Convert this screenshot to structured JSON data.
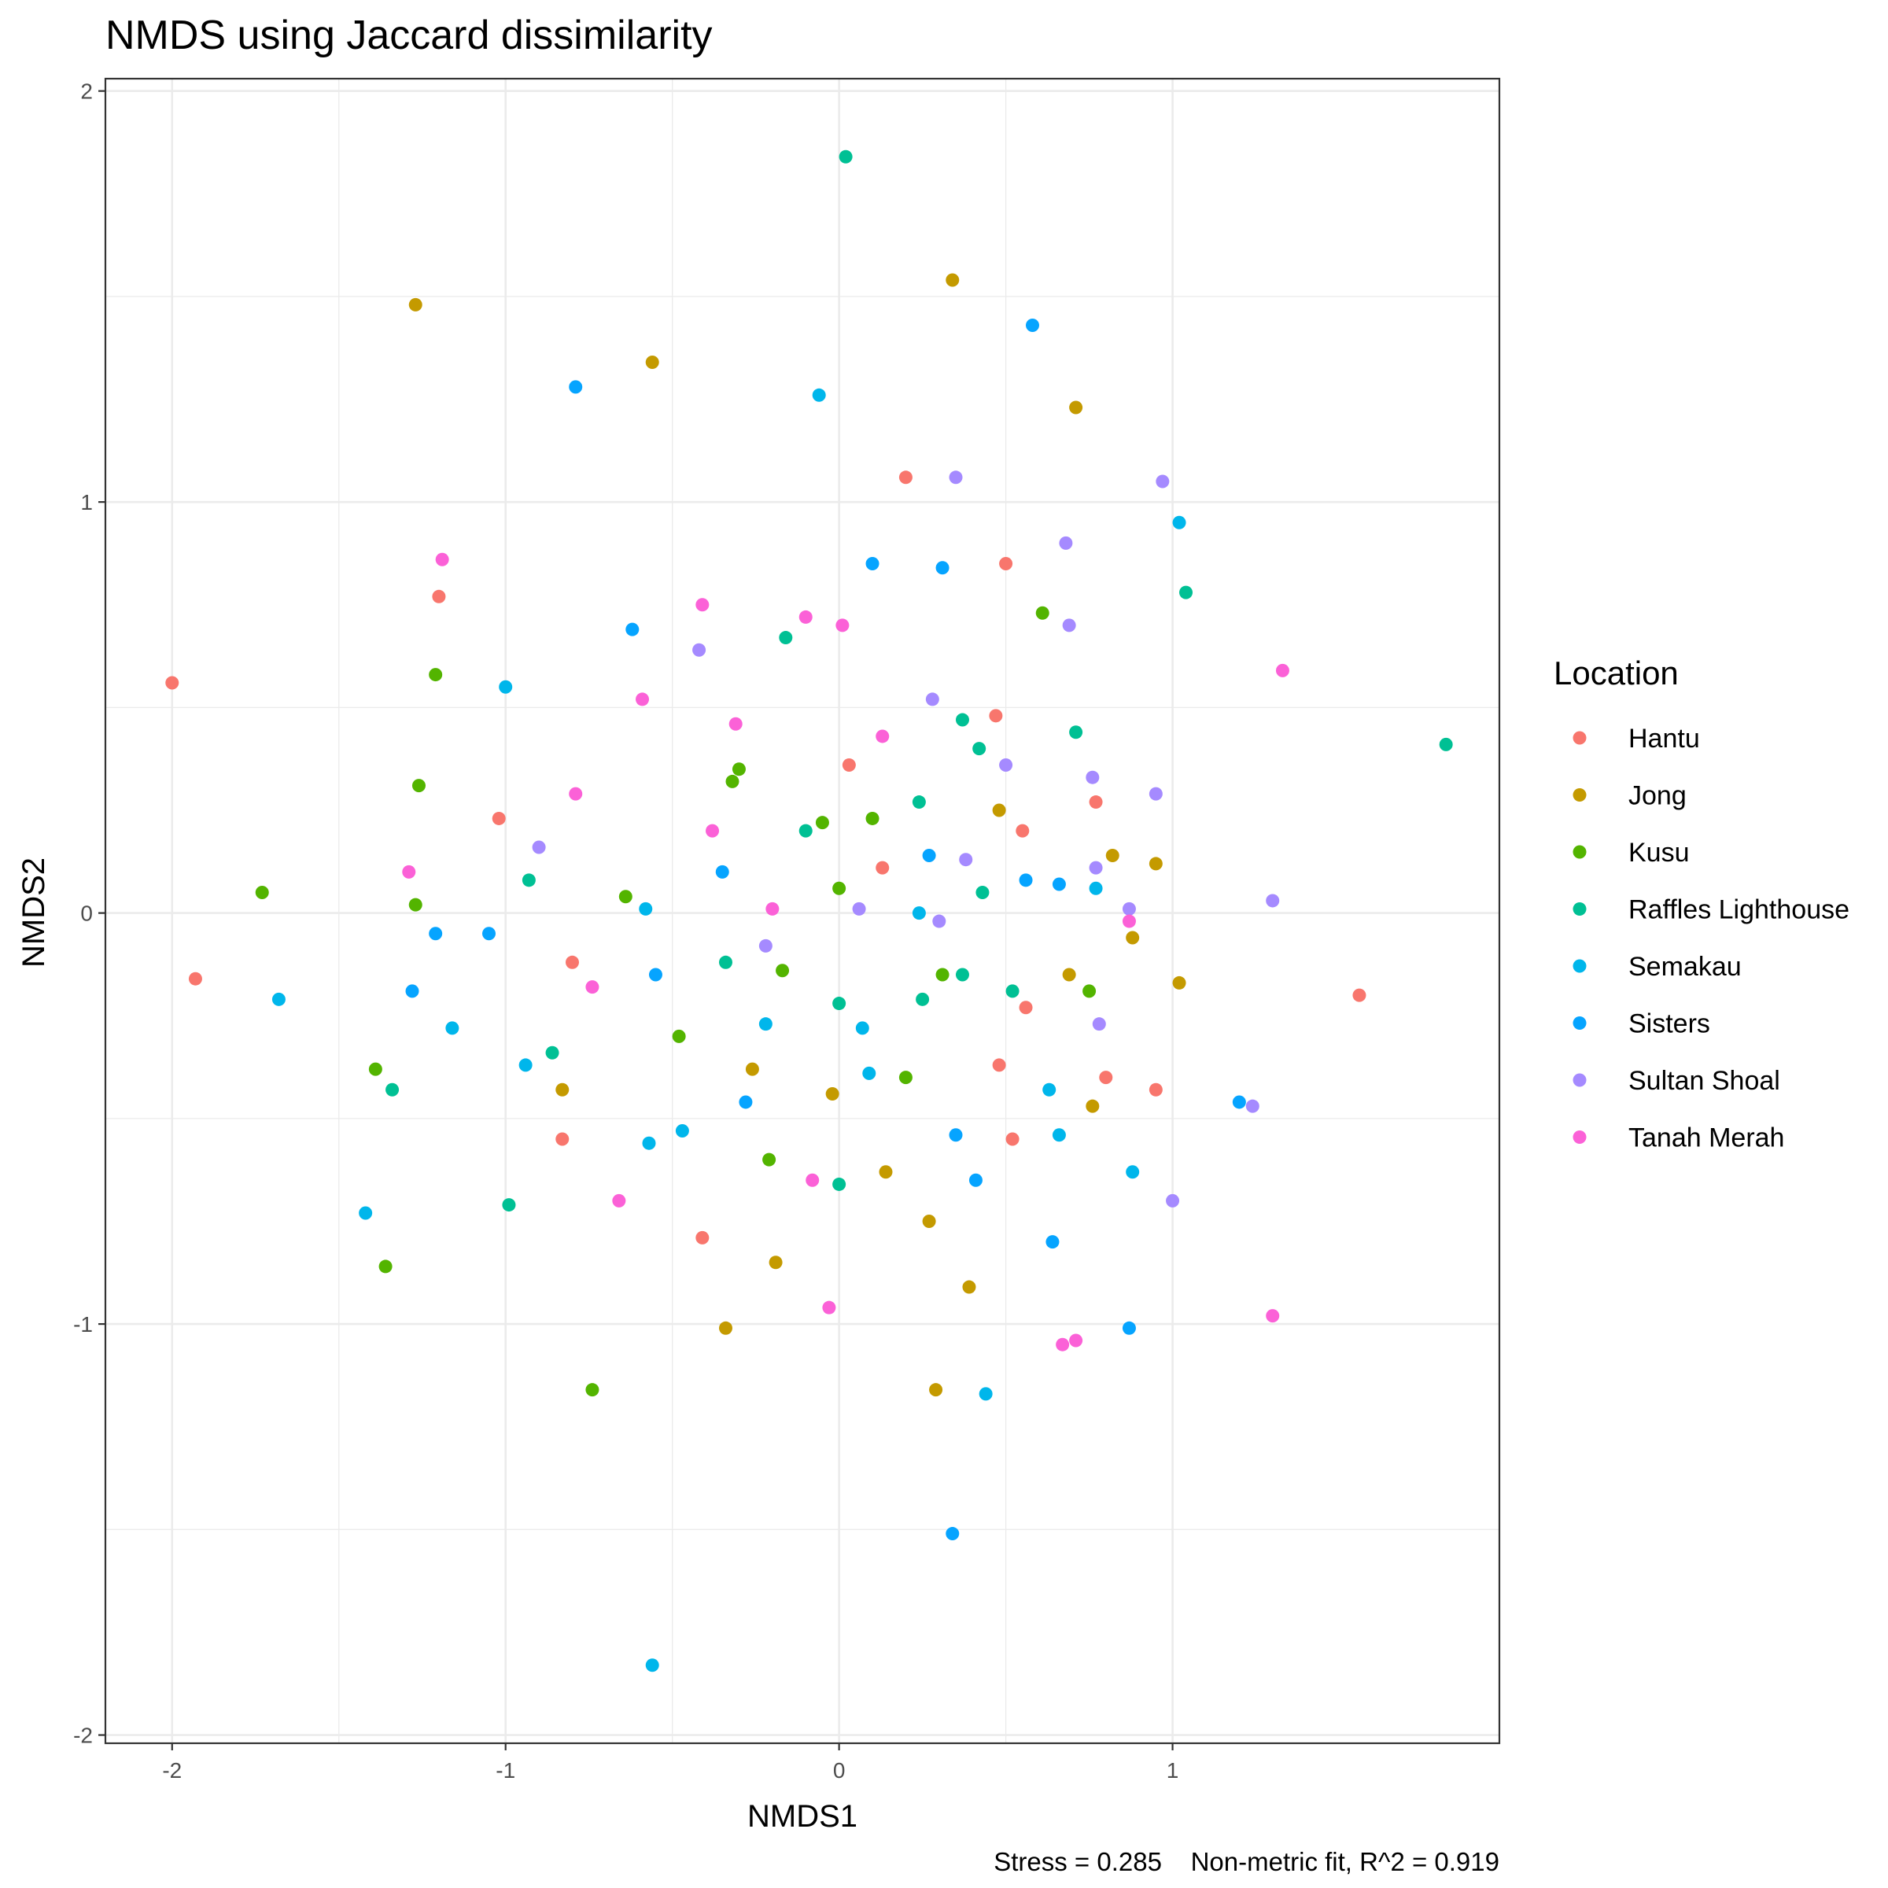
{
  "chart_data": {
    "type": "scatter",
    "title": "NMDS using Jaccard dissimilarity",
    "xlabel": "NMDS1",
    "ylabel": "NMDS2",
    "xlim": [
      -2.2,
      1.98
    ],
    "ylim": [
      -2.02,
      2.03
    ],
    "x_ticks": [
      -2,
      -1,
      0,
      1
    ],
    "y_ticks": [
      -2,
      -1,
      0,
      1,
      2
    ],
    "x_tick_labels": [
      "-2",
      "-1",
      "0",
      "1"
    ],
    "y_tick_labels": [
      "-2",
      "-1",
      "0",
      "1",
      "2"
    ],
    "grid": true,
    "legend_title": "Location",
    "legend_position": "right",
    "caption": "Stress = 0.285    Non-metric fit, R^2 = 0.919",
    "series": [
      {
        "name": "Hantu",
        "color": "#F8766D",
        "points": [
          [
            -2.0,
            0.56
          ],
          [
            -1.93,
            -0.16
          ],
          [
            -1.2,
            0.77
          ],
          [
            -1.02,
            0.23
          ],
          [
            -0.8,
            -0.12
          ],
          [
            -0.83,
            -0.55
          ],
          [
            -0.41,
            -0.79
          ],
          [
            0.03,
            0.36
          ],
          [
            0.13,
            0.11
          ],
          [
            0.2,
            1.06
          ],
          [
            0.47,
            0.48
          ],
          [
            0.5,
            0.85
          ],
          [
            0.55,
            0.2
          ],
          [
            0.56,
            -0.23
          ],
          [
            0.48,
            -0.37
          ],
          [
            0.52,
            -0.55
          ],
          [
            0.77,
            0.27
          ],
          [
            0.8,
            -0.4
          ],
          [
            0.95,
            -0.43
          ],
          [
            1.56,
            -0.2
          ]
        ]
      },
      {
        "name": "Jong",
        "color": "#C49A00",
        "points": [
          [
            -1.27,
            1.48
          ],
          [
            -0.56,
            1.34
          ],
          [
            0.34,
            1.54
          ],
          [
            0.71,
            1.23
          ],
          [
            -0.83,
            -0.43
          ],
          [
            -0.26,
            -0.38
          ],
          [
            -0.02,
            -0.44
          ],
          [
            0.14,
            -0.63
          ],
          [
            0.48,
            0.25
          ],
          [
            0.82,
            0.14
          ],
          [
            0.95,
            0.12
          ],
          [
            0.88,
            -0.06
          ],
          [
            1.02,
            -0.17
          ],
          [
            0.69,
            -0.15
          ],
          [
            0.76,
            -0.47
          ],
          [
            0.27,
            -0.75
          ],
          [
            0.39,
            -0.91
          ],
          [
            -0.19,
            -0.85
          ],
          [
            -0.34,
            -1.01
          ],
          [
            0.29,
            -1.16
          ]
        ]
      },
      {
        "name": "Kusu",
        "color": "#53B400",
        "points": [
          [
            -1.73,
            0.05
          ],
          [
            -1.21,
            0.58
          ],
          [
            -1.26,
            0.31
          ],
          [
            -1.27,
            0.02
          ],
          [
            -1.39,
            -0.38
          ],
          [
            -1.36,
            -0.86
          ],
          [
            -0.74,
            -1.16
          ],
          [
            -0.64,
            0.04
          ],
          [
            -0.48,
            -0.3
          ],
          [
            -0.3,
            0.35
          ],
          [
            -0.32,
            0.32
          ],
          [
            -0.05,
            0.22
          ],
          [
            0.1,
            0.23
          ],
          [
            0.0,
            0.06
          ],
          [
            -0.17,
            -0.14
          ],
          [
            -0.21,
            -0.6
          ],
          [
            0.2,
            -0.4
          ],
          [
            0.31,
            -0.15
          ],
          [
            0.61,
            0.73
          ],
          [
            0.75,
            -0.19
          ]
        ]
      },
      {
        "name": "Raffles Lighthouse",
        "color": "#00C094",
        "points": [
          [
            0.02,
            1.84
          ],
          [
            -0.16,
            0.67
          ],
          [
            -0.1,
            0.2
          ],
          [
            0.24,
            0.27
          ],
          [
            0.37,
            0.47
          ],
          [
            0.42,
            0.4
          ],
          [
            0.71,
            0.44
          ],
          [
            1.04,
            0.78
          ],
          [
            1.82,
            0.41
          ],
          [
            0.43,
            0.05
          ],
          [
            -0.93,
            0.08
          ],
          [
            -1.34,
            -0.43
          ],
          [
            -0.86,
            -0.34
          ],
          [
            -0.34,
            -0.12
          ],
          [
            0.0,
            -0.22
          ],
          [
            0.25,
            -0.21
          ],
          [
            0.37,
            -0.15
          ],
          [
            0.52,
            -0.19
          ],
          [
            0.0,
            -0.66
          ],
          [
            -0.99,
            -0.71
          ]
        ]
      },
      {
        "name": "Semakau",
        "color": "#00B6EB",
        "points": [
          [
            -0.06,
            1.26
          ],
          [
            -1.0,
            0.55
          ],
          [
            1.02,
            0.95
          ],
          [
            -0.58,
            0.01
          ],
          [
            0.24,
            0.0
          ],
          [
            0.77,
            0.06
          ],
          [
            -1.68,
            -0.21
          ],
          [
            -1.16,
            -0.28
          ],
          [
            -0.94,
            -0.37
          ],
          [
            -0.22,
            -0.27
          ],
          [
            0.07,
            -0.28
          ],
          [
            0.09,
            -0.39
          ],
          [
            0.63,
            -0.43
          ],
          [
            0.66,
            -0.54
          ],
          [
            -0.47,
            -0.53
          ],
          [
            -0.57,
            -0.56
          ],
          [
            0.88,
            -0.63
          ],
          [
            -1.42,
            -0.73
          ],
          [
            0.44,
            -1.17
          ],
          [
            -0.56,
            -1.83
          ]
        ]
      },
      {
        "name": "Sisters",
        "color": "#06A4FF",
        "points": [
          [
            0.58,
            1.43
          ],
          [
            -0.79,
            1.28
          ],
          [
            0.1,
            0.85
          ],
          [
            0.31,
            0.84
          ],
          [
            -0.62,
            0.69
          ],
          [
            -0.35,
            0.1
          ],
          [
            0.27,
            0.14
          ],
          [
            0.56,
            0.08
          ],
          [
            0.66,
            0.07
          ],
          [
            -1.21,
            -0.05
          ],
          [
            -1.05,
            -0.05
          ],
          [
            -1.28,
            -0.19
          ],
          [
            -0.55,
            -0.15
          ],
          [
            -0.28,
            -0.46
          ],
          [
            0.35,
            -0.54
          ],
          [
            0.41,
            -0.65
          ],
          [
            0.64,
            -0.8
          ],
          [
            0.87,
            -1.01
          ],
          [
            1.2,
            -0.46
          ],
          [
            0.34,
            -1.51
          ]
        ]
      },
      {
        "name": "Sultan Shoal",
        "color": "#A58AFF",
        "points": [
          [
            0.35,
            1.06
          ],
          [
            0.97,
            1.05
          ],
          [
            0.68,
            0.9
          ],
          [
            0.69,
            0.7
          ],
          [
            -0.42,
            0.64
          ],
          [
            0.28,
            0.52
          ],
          [
            0.5,
            0.36
          ],
          [
            0.76,
            0.33
          ],
          [
            0.95,
            0.29
          ],
          [
            -0.9,
            0.16
          ],
          [
            0.38,
            0.13
          ],
          [
            0.77,
            0.11
          ],
          [
            0.06,
            0.01
          ],
          [
            0.87,
            0.01
          ],
          [
            0.3,
            -0.02
          ],
          [
            -0.22,
            -0.08
          ],
          [
            1.3,
            0.03
          ],
          [
            0.78,
            -0.27
          ],
          [
            1.24,
            -0.47
          ],
          [
            1.0,
            -0.7
          ]
        ]
      },
      {
        "name": "Tanah Merah",
        "color": "#FB61D7",
        "points": [
          [
            -1.19,
            0.86
          ],
          [
            -0.41,
            0.75
          ],
          [
            -0.1,
            0.72
          ],
          [
            0.01,
            0.7
          ],
          [
            -0.59,
            0.52
          ],
          [
            -0.31,
            0.46
          ],
          [
            0.13,
            0.43
          ],
          [
            -0.79,
            0.29
          ],
          [
            -0.38,
            0.2
          ],
          [
            -1.29,
            0.1
          ],
          [
            -0.2,
            0.01
          ],
          [
            -0.74,
            -0.18
          ],
          [
            0.87,
            -0.02
          ],
          [
            1.33,
            0.59
          ],
          [
            -0.66,
            -0.7
          ],
          [
            -0.08,
            -0.65
          ],
          [
            -0.03,
            -0.96
          ],
          [
            0.67,
            -1.05
          ],
          [
            0.71,
            -1.04
          ],
          [
            1.3,
            -0.98
          ]
        ]
      }
    ]
  }
}
